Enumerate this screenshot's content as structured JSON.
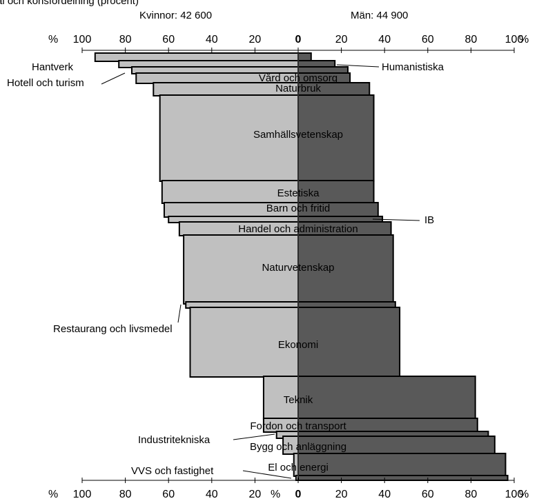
{
  "chart_data": {
    "type": "bar",
    "title": "al och könsfördelning (procent)",
    "women_label": "Kvinnor: 42 600",
    "men_label": "Män: 44 900",
    "percent_symbol": "%",
    "ticks": [
      "100",
      "80",
      "60",
      "40",
      "20",
      "0",
      "20",
      "40",
      "60",
      "80",
      "100"
    ],
    "xlim": [
      -100,
      100
    ],
    "colors": {
      "women": "#c0c0c0",
      "men": "#595959",
      "outline": "#000000"
    },
    "series": [
      {
        "name": "Kvinnor",
        "values": [
          94,
          83,
          77,
          75,
          67,
          64,
          63,
          62,
          60,
          55,
          53,
          52,
          50,
          16,
          16,
          10,
          7,
          2,
          1
        ]
      },
      {
        "name": "Män",
        "values": [
          6,
          17,
          23,
          24,
          33,
          35,
          35,
          37,
          39,
          43,
          44,
          45,
          47,
          82,
          83,
          88,
          91,
          96,
          97
        ]
      }
    ],
    "categories": [
      "Hantverk",
      "Humanistiska",
      "Hotell och turism",
      "Vård och omsorg",
      "Naturbruk",
      "Samhällsvetenskap",
      "Estetiska",
      "Barn och fritid",
      "IB",
      "Handel och administration",
      "Naturvetenskap",
      "Restaurang och livsmedel",
      "Ekonomi",
      "Teknik",
      "Fordon och transport",
      "Industritekniska",
      "Bygg och anläggning",
      "El och energi",
      "VVS och fastighet"
    ],
    "bars": [
      {
        "category": "Hantverk",
        "women": 94,
        "men": 6,
        "label": "",
        "callout": "Hantverk",
        "callout_side": "left"
      },
      {
        "category": "Humanistiska",
        "women": 83,
        "men": 17,
        "label": "",
        "callout": "Humanistiska",
        "callout_side": "right"
      },
      {
        "category": "Hotell och turism",
        "women": 77,
        "men": 23,
        "label": "",
        "callout": "Hotell och turism",
        "callout_side": "left"
      },
      {
        "category": "Vård och omsorg",
        "women": 75,
        "men": 24,
        "label": "Vård och omsorg",
        "callout": "",
        "callout_side": ""
      },
      {
        "category": "Naturbruk",
        "women": 67,
        "men": 33,
        "label": "Naturbruk",
        "callout": "",
        "callout_side": ""
      },
      {
        "category": "Samhällsvetenskap",
        "women": 64,
        "men": 35,
        "label": "Samhällsvetenskap",
        "callout": "",
        "callout_side": ""
      },
      {
        "category": "Estetiska",
        "women": 63,
        "men": 35,
        "label": "Estetiska",
        "callout": "",
        "callout_side": ""
      },
      {
        "category": "Barn och fritid",
        "women": 62,
        "men": 37,
        "label": "Barn och fritid",
        "callout": "",
        "callout_side": ""
      },
      {
        "category": "IB",
        "women": 60,
        "men": 39,
        "label": "",
        "callout": "IB",
        "callout_side": "right"
      },
      {
        "category": "Handel och administration",
        "women": 55,
        "men": 43,
        "label": "Handel och administration",
        "callout": "",
        "callout_side": ""
      },
      {
        "category": "Naturvetenskap",
        "women": 53,
        "men": 44,
        "label": "Naturvetenskap",
        "callout": "",
        "callout_side": ""
      },
      {
        "category": "Restaurang och livsmedel",
        "women": 52,
        "men": 45,
        "label": "",
        "callout": "Restaurang och livsmedel",
        "callout_side": "left"
      },
      {
        "category": "Ekonomi",
        "women": 50,
        "men": 47,
        "label": "Ekonomi",
        "callout": "",
        "callout_side": ""
      },
      {
        "category": "Teknik",
        "women": 16,
        "men": 82,
        "label": "Teknik",
        "callout": "",
        "callout_side": ""
      },
      {
        "category": "Fordon och transport",
        "women": 16,
        "men": 83,
        "label": "Fordon och transport",
        "callout": "",
        "callout_side": ""
      },
      {
        "category": "Industritekniska",
        "women": 10,
        "men": 88,
        "label": "",
        "callout": "Industritekniska",
        "callout_side": "left"
      },
      {
        "category": "Bygg och anläggning",
        "women": 7,
        "men": 91,
        "label": "Bygg och anläggning",
        "callout": "",
        "callout_side": ""
      },
      {
        "category": "El och energi",
        "women": 2,
        "men": 96,
        "label": "El och energi",
        "callout": "",
        "callout_side": ""
      },
      {
        "category": "VVS och fastighet",
        "women": 1,
        "men": 97,
        "label": "",
        "callout": "VVS och fastighet",
        "callout_side": "left"
      }
    ]
  }
}
